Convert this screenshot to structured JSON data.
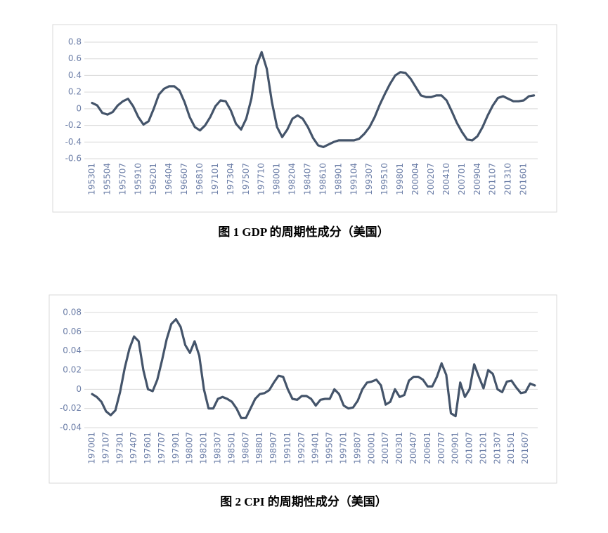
{
  "chart_data": [
    {
      "type": "line",
      "title": "图 1 GDP 的周期性成分（美国）",
      "categories": [
        "195301",
        null,
        null,
        "195504",
        null,
        null,
        "195707",
        null,
        null,
        "195910",
        null,
        null,
        "196201",
        null,
        null,
        "196404",
        null,
        null,
        "196607",
        null,
        null,
        "196810",
        null,
        null,
        "197101",
        null,
        null,
        "197304",
        null,
        null,
        "197507",
        null,
        null,
        "197710",
        null,
        null,
        "198001",
        null,
        null,
        "198204",
        null,
        null,
        "198407",
        null,
        null,
        "198610",
        null,
        null,
        "198901",
        null,
        null,
        "199104",
        null,
        null,
        "199307",
        null,
        null,
        "199510",
        null,
        null,
        "199801",
        null,
        null,
        "200004",
        null,
        null,
        "200207",
        null,
        null,
        "200410",
        null,
        null,
        "200701",
        null,
        null,
        "200904",
        null,
        null,
        "201107",
        null,
        null,
        "201310",
        null,
        null,
        "201601",
        null,
        null
      ],
      "values": [
        0.07,
        0.04,
        -0.05,
        -0.07,
        -0.04,
        0.04,
        0.09,
        0.12,
        0.03,
        -0.1,
        -0.19,
        -0.15,
        0.0,
        0.17,
        0.24,
        0.27,
        0.27,
        0.22,
        0.08,
        -0.1,
        -0.22,
        -0.26,
        -0.2,
        -0.1,
        0.03,
        0.1,
        0.09,
        -0.02,
        -0.18,
        -0.25,
        -0.12,
        0.12,
        0.52,
        0.68,
        0.48,
        0.08,
        -0.22,
        -0.34,
        -0.25,
        -0.12,
        -0.08,
        -0.12,
        -0.22,
        -0.35,
        -0.44,
        -0.46,
        -0.43,
        -0.4,
        -0.38,
        -0.38,
        -0.38,
        -0.38,
        -0.36,
        -0.3,
        -0.22,
        -0.1,
        0.05,
        0.18,
        0.3,
        0.4,
        0.44,
        0.43,
        0.36,
        0.26,
        0.16,
        0.14,
        0.14,
        0.16,
        0.16,
        0.1,
        -0.03,
        -0.17,
        -0.28,
        -0.37,
        -0.38,
        -0.33,
        -0.22,
        -0.08,
        0.04,
        0.13,
        0.15,
        0.12,
        0.09,
        0.09,
        0.1,
        0.15,
        0.16
      ],
      "color": "#44546a",
      "ylim": [
        -0.6,
        0.8
      ],
      "yticks": [
        0.8,
        0.6,
        0.4,
        0.2,
        0,
        -0.2,
        -0.4,
        -0.6
      ],
      "grid": true
    },
    {
      "type": "line",
      "title": "图 2 CPI 的周期性成分（美国）",
      "categories": [
        "197001",
        null,
        null,
        "197107",
        null,
        null,
        "197301",
        null,
        null,
        "197407",
        null,
        null,
        "197601",
        null,
        null,
        "197707",
        null,
        null,
        "197901",
        null,
        null,
        "198007",
        null,
        null,
        "198201",
        null,
        null,
        "198307",
        null,
        null,
        "198501",
        null,
        null,
        "198607",
        null,
        null,
        "198801",
        null,
        null,
        "198907",
        null,
        null,
        "199101",
        null,
        null,
        "199207",
        null,
        null,
        "199401",
        null,
        null,
        "199507",
        null,
        null,
        "199701",
        null,
        null,
        "199807",
        null,
        null,
        "200001",
        null,
        null,
        "200107",
        null,
        null,
        "200301",
        null,
        null,
        "200407",
        null,
        null,
        "200601",
        null,
        null,
        "200707",
        null,
        null,
        "200901",
        null,
        null,
        "201007",
        null,
        null,
        "201201",
        null,
        null,
        "201307",
        null,
        null,
        "201501",
        null,
        null,
        "201607",
        null,
        null
      ],
      "values": [
        -0.005,
        -0.008,
        -0.013,
        -0.023,
        -0.027,
        -0.022,
        -0.003,
        0.022,
        0.042,
        0.055,
        0.05,
        0.02,
        0.0,
        -0.002,
        0.01,
        0.03,
        0.052,
        0.068,
        0.073,
        0.065,
        0.046,
        0.038,
        0.05,
        0.035,
        0.0,
        -0.02,
        -0.02,
        -0.01,
        -0.008,
        -0.01,
        -0.013,
        -0.02,
        -0.03,
        -0.03,
        -0.02,
        -0.01,
        -0.005,
        -0.004,
        -0.001,
        0.007,
        0.014,
        0.013,
        0.0,
        -0.01,
        -0.011,
        -0.007,
        -0.007,
        -0.01,
        -0.017,
        -0.011,
        -0.01,
        -0.01,
        0.0,
        -0.005,
        -0.017,
        -0.02,
        -0.019,
        -0.012,
        0.0,
        0.007,
        0.008,
        0.01,
        0.004,
        -0.016,
        -0.013,
        0.0,
        -0.008,
        -0.006,
        0.009,
        0.013,
        0.013,
        0.01,
        0.003,
        0.003,
        0.013,
        0.027,
        0.015,
        -0.025,
        -0.028,
        0.007,
        -0.008,
        0.0,
        0.026,
        0.013,
        0.001,
        0.02,
        0.016,
        0.0,
        -0.003,
        0.008,
        0.009,
        0.002,
        -0.004,
        -0.003,
        0.006,
        0.004
      ],
      "color": "#44546a",
      "ylim": [
        -0.04,
        0.08
      ],
      "yticks": [
        0.08,
        0.06,
        0.04,
        0.02,
        0,
        -0.02,
        -0.04
      ],
      "grid": true
    }
  ]
}
